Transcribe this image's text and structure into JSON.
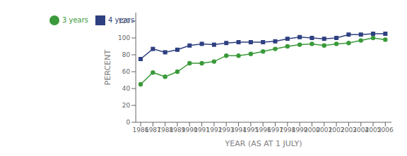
{
  "chart_data": {
    "type": "line",
    "xlabel": "YEAR (AS AT 1 JULY)",
    "ylabel": "PERCENT",
    "x": [
      1986,
      1987,
      1988,
      1989,
      1990,
      1991,
      1992,
      1993,
      1994,
      1995,
      1996,
      1997,
      1998,
      1999,
      2000,
      2001,
      2002,
      2003,
      2004,
      2005,
      2006
    ],
    "series": [
      {
        "name": "4 years",
        "color": "#2E4080",
        "marker": "square",
        "values": [
          75,
          87,
          83,
          86,
          91,
          93,
          92,
          94,
          95,
          95,
          95,
          96,
          99,
          101,
          100,
          99,
          100,
          104,
          104,
          105,
          105
        ]
      },
      {
        "name": "3 years",
        "color": "#3A9A3A",
        "marker": "circle",
        "values": [
          45,
          59,
          54,
          60,
          70,
          70,
          72,
          79,
          79,
          81,
          84,
          87,
          90,
          92,
          93,
          91,
          93,
          94,
          97,
          100,
          98
        ]
      }
    ],
    "xlim": [
      1985.6,
      2006.5
    ],
    "xticks": [
      1986,
      1987,
      1988,
      1989,
      1990,
      1991,
      1992,
      1993,
      1994,
      1995,
      1996,
      1997,
      1998,
      1999,
      2000,
      2001,
      2002,
      2003,
      2004,
      2005,
      2006
    ],
    "ylim": [
      0,
      130
    ],
    "yticks": [
      0,
      20,
      40,
      60,
      80,
      100,
      120
    ],
    "grid": false,
    "legend": "upper left"
  }
}
